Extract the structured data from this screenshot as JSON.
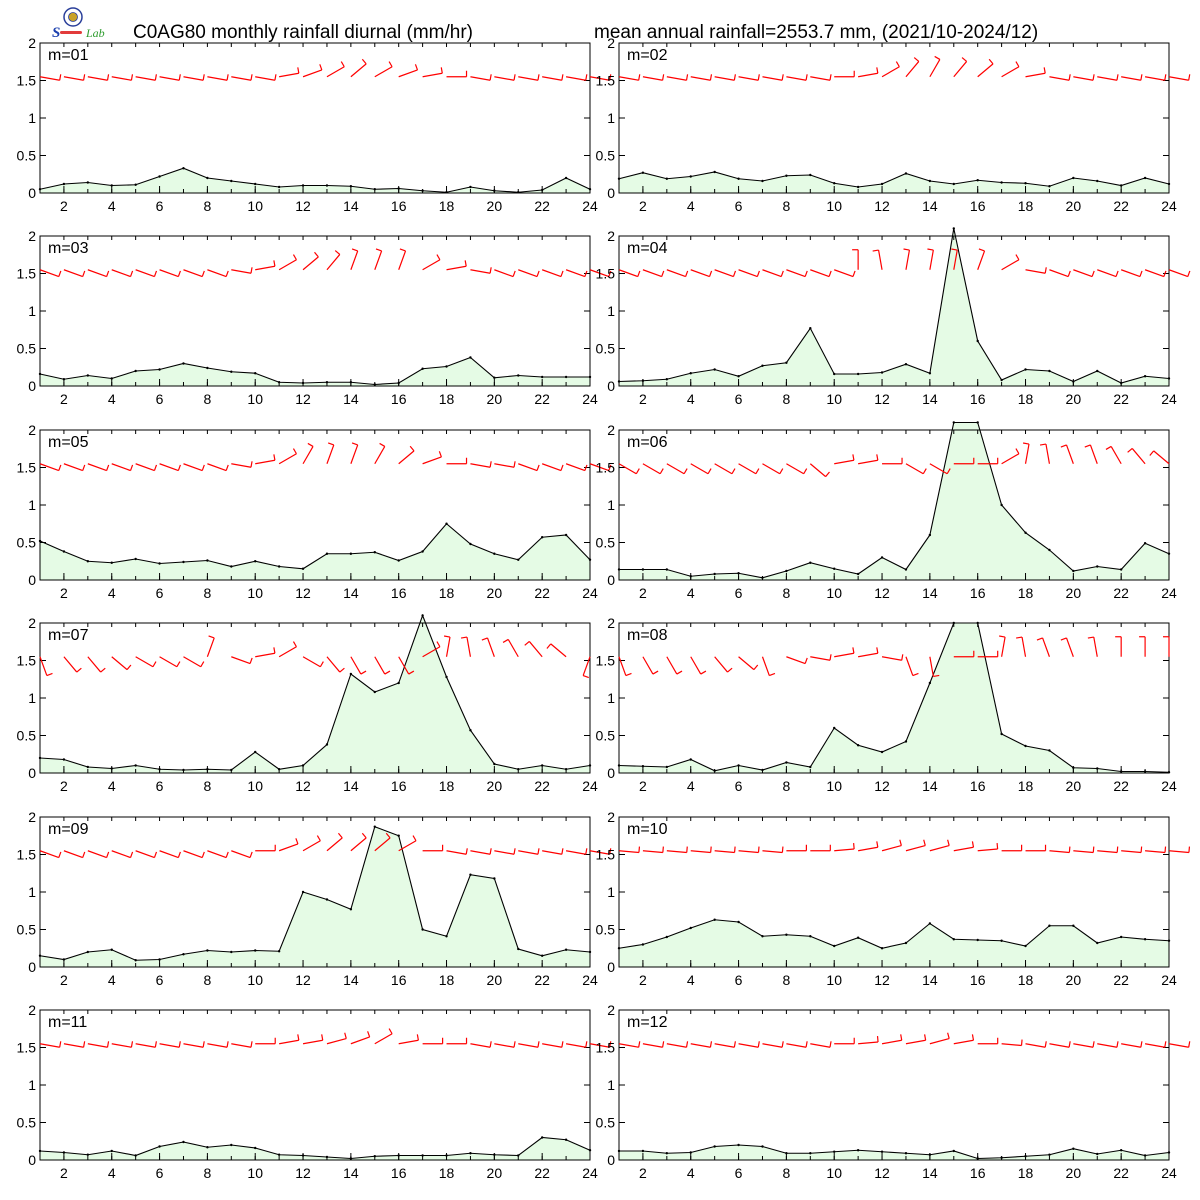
{
  "header": {
    "title_left": "C0AG80 monthly rainfall diurnal (mm/hr)",
    "title_right": "mean annual rainfall=2553.7 mm, (2021/10-2024/12)"
  },
  "logo": {
    "text": "Lab",
    "icon": "emblem-seal-icon"
  },
  "colors": {
    "fill": "#e5fbe5",
    "line": "#000000",
    "wind": "#ff0000"
  },
  "chart_data": {
    "type": "area",
    "x": [
      1,
      2,
      3,
      4,
      5,
      6,
      7,
      8,
      9,
      10,
      11,
      12,
      13,
      14,
      15,
      16,
      17,
      18,
      19,
      20,
      21,
      22,
      23,
      24
    ],
    "xticks": [
      "2",
      "4",
      "6",
      "8",
      "10",
      "12",
      "14",
      "16",
      "18",
      "20",
      "22",
      "24"
    ],
    "yticks": [
      "0",
      "0.5",
      "1",
      "1.5",
      "2"
    ],
    "xlim": [
      1,
      24
    ],
    "ylim": [
      0,
      2
    ],
    "wind_barb_level": 1.55,
    "panels": [
      {
        "label": "m=01",
        "values": [
          0.05,
          0.12,
          0.14,
          0.1,
          0.11,
          0.22,
          0.33,
          0.2,
          0.16,
          0.12,
          0.08,
          0.1,
          0.1,
          0.09,
          0.05,
          0.06,
          0.03,
          0.01,
          0.08,
          0.03,
          0.01,
          0.04,
          0.2,
          0.05
        ],
        "wind_dirs": [
          100,
          100,
          100,
          100,
          100,
          100,
          100,
          100,
          100,
          100,
          80,
          70,
          60,
          50,
          60,
          70,
          80,
          90,
          100,
          100,
          100,
          100,
          100,
          100
        ]
      },
      {
        "label": "m=02",
        "values": [
          0.19,
          0.27,
          0.19,
          0.22,
          0.28,
          0.19,
          0.16,
          0.23,
          0.24,
          0.13,
          0.08,
          0.12,
          0.26,
          0.16,
          0.12,
          0.17,
          0.14,
          0.13,
          0.09,
          0.2,
          0.16,
          0.1,
          0.2,
          0.12
        ],
        "wind_dirs": [
          100,
          100,
          100,
          100,
          100,
          100,
          100,
          100,
          100,
          90,
          80,
          60,
          40,
          30,
          40,
          50,
          60,
          80,
          100,
          100,
          100,
          100,
          100,
          100
        ]
      },
      {
        "label": "m=03",
        "values": [
          0.16,
          0.09,
          0.14,
          0.1,
          0.2,
          0.22,
          0.3,
          0.24,
          0.19,
          0.17,
          0.05,
          0.04,
          0.05,
          0.05,
          0.02,
          0.04,
          0.23,
          0.26,
          0.38,
          0.11,
          0.14,
          0.12,
          0.12,
          0.12
        ],
        "wind_dirs": [
          110,
          110,
          110,
          110,
          110,
          110,
          110,
          110,
          100,
          80,
          60,
          50,
          40,
          20,
          20,
          20,
          60,
          80,
          100,
          110,
          110,
          110,
          110,
          110
        ]
      },
      {
        "label": "m=04",
        "values": [
          0.06,
          0.07,
          0.09,
          0.17,
          0.22,
          0.13,
          0.27,
          0.31,
          0.77,
          0.16,
          0.16,
          0.18,
          0.29,
          0.17,
          2.1,
          0.6,
          0.08,
          0.22,
          0.2,
          0.06,
          0.2,
          0.04,
          0.13,
          0.1
        ],
        "wind_dirs": [
          110,
          110,
          110,
          110,
          110,
          110,
          110,
          110,
          110,
          110,
          0,
          350,
          10,
          10,
          10,
          20,
          60,
          100,
          110,
          110,
          110,
          110,
          110,
          110
        ]
      },
      {
        "label": "m=05",
        "values": [
          0.52,
          0.38,
          0.25,
          0.23,
          0.28,
          0.22,
          0.24,
          0.26,
          0.18,
          0.25,
          0.18,
          0.15,
          0.35,
          0.35,
          0.37,
          0.26,
          0.38,
          0.75,
          0.48,
          0.35,
          0.27,
          0.57,
          0.6,
          0.27
        ],
        "wind_dirs": [
          110,
          110,
          110,
          110,
          110,
          110,
          110,
          110,
          100,
          80,
          60,
          30,
          20,
          20,
          30,
          50,
          70,
          90,
          100,
          100,
          110,
          110,
          110,
          110
        ]
      },
      {
        "label": "m=06",
        "values": [
          0.14,
          0.14,
          0.14,
          0.05,
          0.08,
          0.09,
          0.03,
          0.12,
          0.23,
          0.15,
          0.08,
          0.3,
          0.14,
          0.6,
          2.1,
          2.1,
          1.0,
          0.63,
          0.4,
          0.12,
          0.18,
          0.14,
          0.49,
          0.35
        ],
        "wind_dirs": [
          120,
          120,
          120,
          120,
          120,
          120,
          120,
          120,
          130,
          80,
          80,
          90,
          120,
          120,
          90,
          90,
          60,
          10,
          350,
          340,
          340,
          330,
          320,
          310
        ]
      },
      {
        "label": "m=07",
        "values": [
          0.2,
          0.18,
          0.08,
          0.06,
          0.1,
          0.05,
          0.04,
          0.05,
          0.04,
          0.28,
          0.05,
          0.1,
          0.38,
          1.32,
          1.08,
          1.2,
          2.1,
          1.28,
          0.57,
          0.12,
          0.05,
          0.1,
          0.05,
          0.1
        ],
        "wind_dirs": [
          160,
          140,
          140,
          130,
          120,
          120,
          120,
          20,
          110,
          80,
          60,
          120,
          140,
          150,
          150,
          150,
          60,
          10,
          350,
          340,
          330,
          320,
          310,
          200
        ]
      },
      {
        "label": "m=08",
        "values": [
          0.1,
          0.09,
          0.08,
          0.18,
          0.03,
          0.1,
          0.04,
          0.14,
          0.08,
          0.6,
          0.37,
          0.28,
          0.42,
          1.2,
          2.0,
          2.0,
          0.52,
          0.36,
          0.3,
          0.07,
          0.06,
          0.02,
          0.02,
          0.01
        ],
        "wind_dirs": [
          160,
          150,
          150,
          150,
          140,
          130,
          160,
          110,
          100,
          80,
          80,
          100,
          160,
          170,
          90,
          90,
          10,
          350,
          340,
          340,
          350,
          0,
          0,
          0
        ]
      },
      {
        "label": "m=09",
        "values": [
          0.15,
          0.1,
          0.2,
          0.23,
          0.09,
          0.1,
          0.17,
          0.22,
          0.2,
          0.22,
          0.21,
          1.0,
          0.9,
          0.77,
          1.87,
          1.75,
          0.5,
          0.41,
          1.23,
          1.18,
          0.24,
          0.15,
          0.23,
          0.2
        ],
        "wind_dirs": [
          110,
          110,
          110,
          110,
          110,
          110,
          110,
          110,
          110,
          90,
          70,
          60,
          50,
          50,
          50,
          60,
          90,
          100,
          100,
          100,
          100,
          100,
          100,
          100
        ]
      },
      {
        "label": "m=10",
        "values": [
          0.25,
          0.3,
          0.4,
          0.52,
          0.63,
          0.6,
          0.41,
          0.43,
          0.41,
          0.28,
          0.39,
          0.25,
          0.32,
          0.58,
          0.37,
          0.36,
          0.35,
          0.28,
          0.55,
          0.55,
          0.32,
          0.4,
          0.37,
          0.35
        ],
        "wind_dirs": [
          95,
          95,
          95,
          95,
          95,
          95,
          95,
          90,
          90,
          85,
          80,
          75,
          75,
          75,
          80,
          85,
          90,
          90,
          95,
          95,
          95,
          95,
          95,
          95
        ]
      },
      {
        "label": "m=11",
        "values": [
          0.12,
          0.1,
          0.07,
          0.12,
          0.06,
          0.18,
          0.24,
          0.17,
          0.2,
          0.16,
          0.07,
          0.06,
          0.04,
          0.02,
          0.05,
          0.06,
          0.06,
          0.06,
          0.09,
          0.07,
          0.06,
          0.3,
          0.27,
          0.13
        ],
        "wind_dirs": [
          100,
          100,
          100,
          100,
          100,
          100,
          100,
          100,
          100,
          90,
          80,
          80,
          75,
          70,
          60,
          80,
          90,
          90,
          100,
          100,
          100,
          100,
          100,
          100
        ]
      },
      {
        "label": "m=12",
        "values": [
          0.12,
          0.12,
          0.09,
          0.1,
          0.18,
          0.2,
          0.18,
          0.09,
          0.09,
          0.11,
          0.13,
          0.11,
          0.09,
          0.07,
          0.12,
          0.02,
          0.03,
          0.05,
          0.07,
          0.15,
          0.08,
          0.13,
          0.06,
          0.1
        ],
        "wind_dirs": [
          100,
          100,
          100,
          100,
          100,
          100,
          100,
          100,
          100,
          90,
          85,
          80,
          80,
          75,
          80,
          90,
          95,
          100,
          100,
          100,
          100,
          100,
          100,
          100
        ]
      }
    ]
  }
}
